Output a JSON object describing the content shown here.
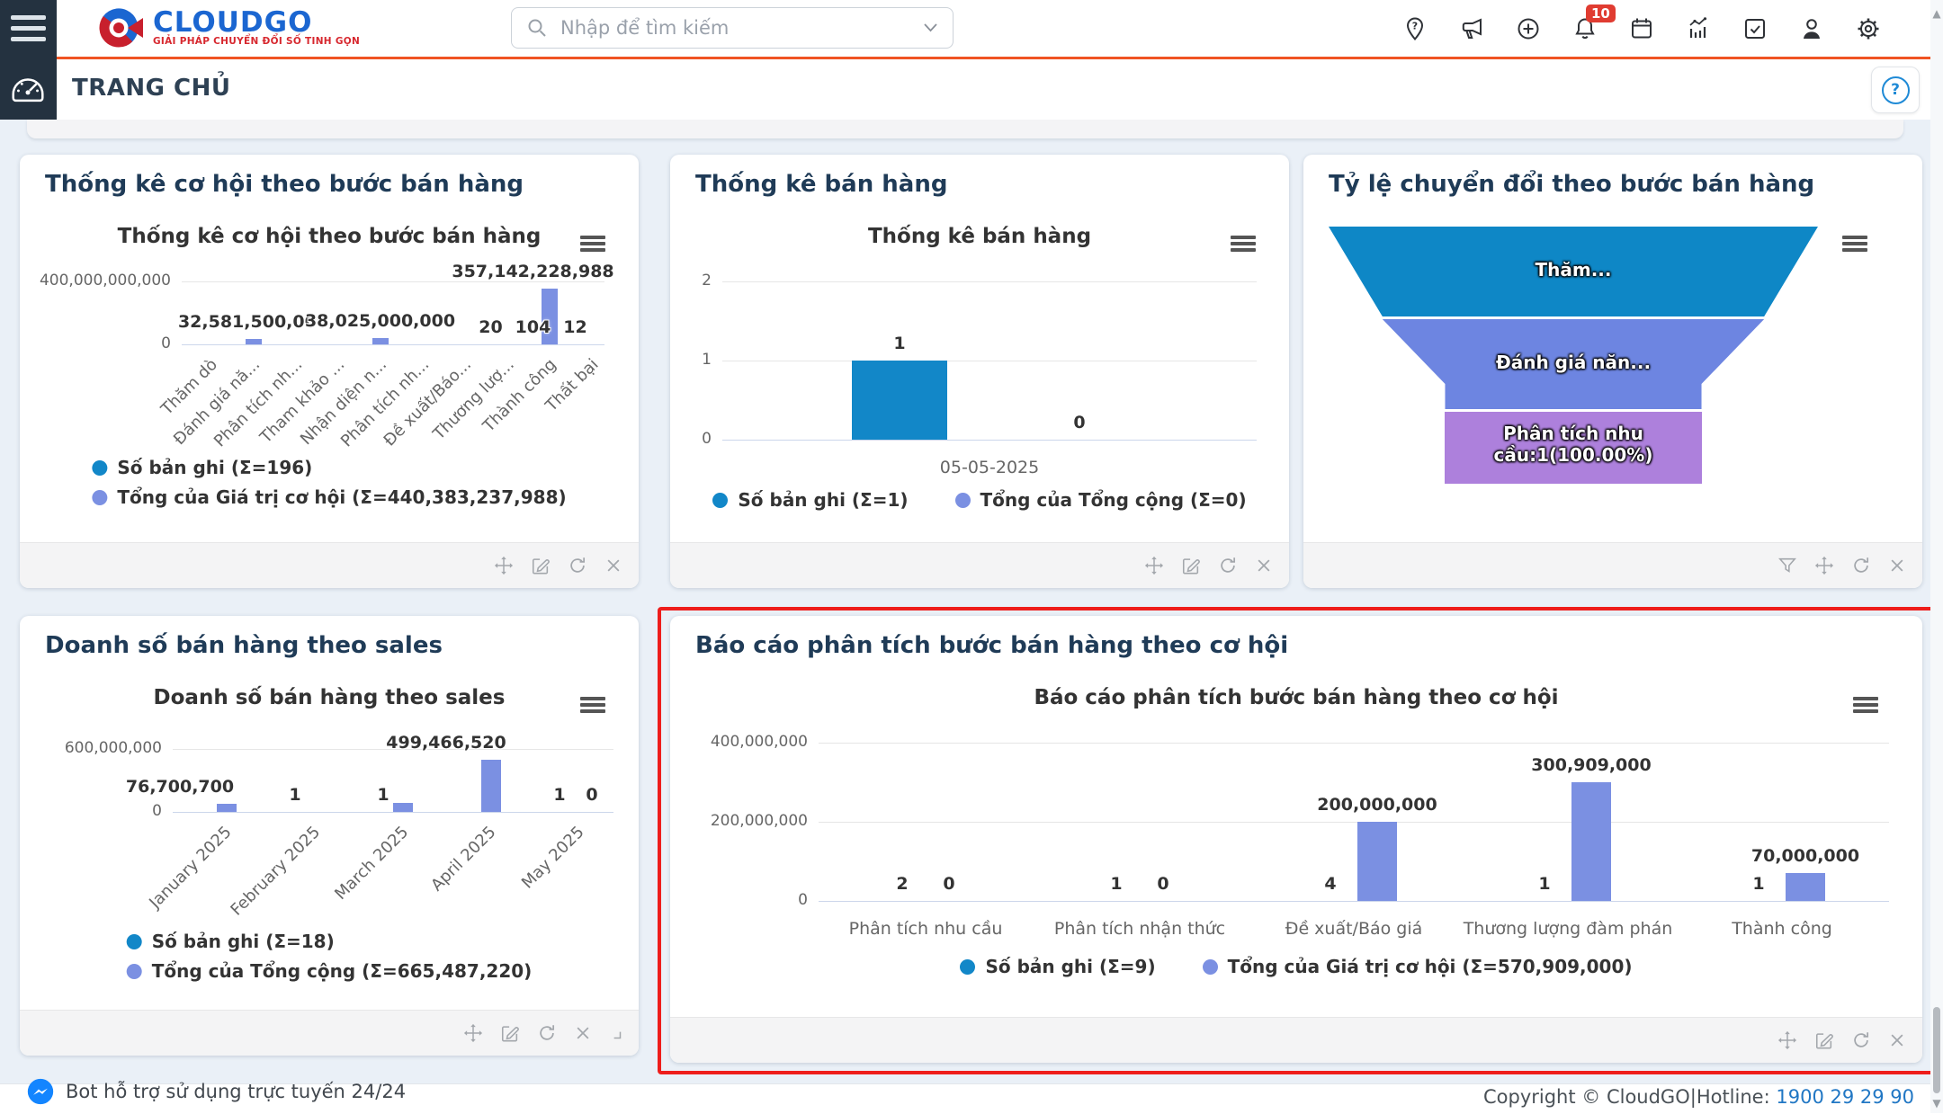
{
  "header": {
    "brand": "CLOUDGO",
    "tagline": "GIẢI PHÁP CHUYỂN ĐỔI SỐ TINH GỌN",
    "search_placeholder": "Nhập để tìm kiếm",
    "notification_count": "10",
    "icons": [
      "location-pin",
      "megaphone",
      "plus-circle",
      "bell",
      "calendar",
      "analytics",
      "check-square",
      "user",
      "gear"
    ]
  },
  "breadcrumb": {
    "title": "TRANG CHỦ",
    "help": "?"
  },
  "statusbar": {
    "bot_text": "Bot hỗ trợ sử dụng trực tuyến 24/24",
    "copyright": "Copyright © CloudGO",
    "separator": "|",
    "hotline_label": "Hotline:",
    "hotline_number": "1900 29 29 90"
  },
  "colors": {
    "accent_orange": "#f05423",
    "sidebar_navy": "#243240",
    "title_navy": "#1f3b57",
    "series_blue": "#1287c8",
    "series_periwinkle": "#7b90e2",
    "highlight_red": "#ee1d1b"
  },
  "widgets": [
    {
      "id": "thong-ke-co-hoi-theo-buoc-ban-hang",
      "card_title": "Thống kê cơ hội theo bước bán hàng",
      "footer_icons": [
        "move",
        "edit",
        "refresh",
        "close"
      ],
      "chart_data": {
        "type": "bar",
        "title": "Thống kê cơ hội theo bước bán hàng",
        "categories": [
          "Thăm dò",
          "Đánh giá nă...",
          "Phân tích nh...",
          "Tham khảo ...",
          "Nhận diện n...",
          "Phân tích nh...",
          "Đề xuất/Báo...",
          "Thương lượ...",
          "Thành công",
          "Thất bại"
        ],
        "ylim": [
          0,
          400000000000
        ],
        "yticks": [
          {
            "value": 400000000000,
            "label": "400,000,000,000"
          },
          {
            "value": 0,
            "label": "0"
          }
        ],
        "series": [
          {
            "name": "Số bản ghi (Σ=196)",
            "color": "#1287c8"
          },
          {
            "name": "Tổng của Giá trị cơ hội (Σ=440,383,237,988)",
            "color": "#7b90e2"
          }
        ],
        "legend_layout": "vertical",
        "points": [
          {
            "cat": 1,
            "series": 1,
            "value": 32581500000,
            "label": "32,581,500,000"
          },
          {
            "cat": 4,
            "series": 1,
            "value": 38025000000,
            "label": "38,025,000,000"
          },
          {
            "cat": 8,
            "series": 1,
            "value": 357142228988,
            "label": "357,142,228,988",
            "label_dx": -18
          },
          {
            "cat": 7,
            "series": 0,
            "value": 20,
            "label": "20"
          },
          {
            "cat": 8,
            "series": 0,
            "value": 104,
            "label": "104"
          },
          {
            "cat": 9,
            "series": 0,
            "value": 12,
            "label": "12"
          }
        ]
      }
    },
    {
      "id": "thong-ke-ban-hang",
      "card_title": "Thống kê bán hàng",
      "footer_icons": [
        "move",
        "edit",
        "refresh",
        "close"
      ],
      "chart_data": {
        "type": "bar",
        "title": "Thống kê bán hàng",
        "categories": [
          "05-05-2025"
        ],
        "ylim": [
          0,
          2
        ],
        "yticks": [
          {
            "value": 2,
            "label": "2"
          },
          {
            "value": 1,
            "label": "1"
          },
          {
            "value": 0,
            "label": "0"
          }
        ],
        "series": [
          {
            "name": "Số bản ghi (Σ=1)",
            "color": "#1287c8"
          },
          {
            "name": "Tổng của Tổng cộng (Σ=0)",
            "color": "#7b90e2"
          }
        ],
        "legend_layout": "horizontal",
        "points": [
          {
            "cat": 0,
            "series": 0,
            "value": 1,
            "label": "1"
          },
          {
            "cat": 0,
            "series": 1,
            "value": 0,
            "label": "0"
          }
        ]
      }
    },
    {
      "id": "ty-le-chuyen-doi-theo-buoc-ban-hang",
      "card_title": "Tỷ lệ chuyển đổi theo bước bán hàng",
      "footer_icons": [
        "filter",
        "move",
        "refresh",
        "close"
      ],
      "chart_data": {
        "type": "funnel",
        "segments": [
          {
            "label": "Thăm...",
            "color": "#0e87c6"
          },
          {
            "label": "Đánh giá năn...",
            "color": "#6d85e1"
          },
          {
            "label": "Phân tích nhu cầu:1(100.00%)",
            "color": "#ad80dc"
          }
        ]
      }
    },
    {
      "id": "doanh-so-ban-hang-theo-sales",
      "card_title": "Doanh số bán hàng theo sales",
      "footer_icons": [
        "move",
        "edit",
        "refresh",
        "close",
        "resize"
      ],
      "chart_data": {
        "type": "bar",
        "title": "Doanh số bán hàng theo sales",
        "categories": [
          "January 2025",
          "February 2025",
          "March 2025",
          "April 2025",
          "May 2025"
        ],
        "ylim": [
          0,
          600000000
        ],
        "yticks": [
          {
            "value": 600000000,
            "label": "600,000,000"
          },
          {
            "value": 0,
            "label": "0"
          }
        ],
        "series": [
          {
            "name": "Số bản ghi (Σ=18)",
            "color": "#1287c8"
          },
          {
            "name": "Tổng của Tổng cộng (Σ=665,487,220)",
            "color": "#7b90e2"
          }
        ],
        "legend_layout": "vertical",
        "points": [
          {
            "cat": 0,
            "series": 1,
            "value": 76700700,
            "label": "76,700,700",
            "label_dx": -52
          },
          {
            "cat": 1,
            "series": 0,
            "value": 1,
            "label": "1"
          },
          {
            "cat": 2,
            "series": 0,
            "value": 1,
            "label": "1"
          },
          {
            "cat": 2,
            "series": 1,
            "value": 89320000,
            "label": null
          },
          {
            "cat": 3,
            "series": 1,
            "value": 499466520,
            "label": "499,466,520",
            "label_dx": -50
          },
          {
            "cat": 4,
            "series": 0,
            "value": 1,
            "label": "1"
          },
          {
            "cat": 4,
            "series": 1,
            "value": 0,
            "label": "0",
            "label_dx": 14
          }
        ]
      }
    },
    {
      "id": "bao-cao-phan-tich-buoc-ban-hang-theo-co-hoi",
      "card_title": "Báo cáo phân tích bước bán hàng theo cơ hội",
      "highlighted": true,
      "footer_icons": [
        "move",
        "edit",
        "refresh",
        "close"
      ],
      "chart_data": {
        "type": "bar",
        "title": "Báo cáo phân tích bước bán hàng theo cơ hội",
        "categories": [
          "Phân tích nhu cầu",
          "Phân tích nhận thức",
          "Đề xuất/Báo giá",
          "Thương lượng đàm phán",
          "Thành công"
        ],
        "ylim": [
          0,
          400000000
        ],
        "yticks": [
          {
            "value": 400000000,
            "label": "400,000,000"
          },
          {
            "value": 200000000,
            "label": "200,000,000"
          },
          {
            "value": 0,
            "label": "0"
          }
        ],
        "series": [
          {
            "name": "Số bản ghi (Σ=9)",
            "color": "#1287c8"
          },
          {
            "name": "Tổng của Giá trị cơ hội (Σ=570,909,000)",
            "color": "#7b90e2"
          }
        ],
        "legend_layout": "horizontal",
        "points": [
          {
            "cat": 0,
            "series": 0,
            "value": 2,
            "label": "2"
          },
          {
            "cat": 0,
            "series": 1,
            "value": 0,
            "label": "0"
          },
          {
            "cat": 1,
            "series": 0,
            "value": 1,
            "label": "1"
          },
          {
            "cat": 1,
            "series": 1,
            "value": 0,
            "label": "0"
          },
          {
            "cat": 2,
            "series": 0,
            "value": 4,
            "label": "4"
          },
          {
            "cat": 2,
            "series": 1,
            "value": 200000000,
            "label": "200,000,000"
          },
          {
            "cat": 3,
            "series": 0,
            "value": 1,
            "label": "1"
          },
          {
            "cat": 3,
            "series": 1,
            "value": 300909000,
            "label": "300,909,000"
          },
          {
            "cat": 4,
            "series": 0,
            "value": 1,
            "label": "1"
          },
          {
            "cat": 4,
            "series": 1,
            "value": 70000000,
            "label": "70,000,000"
          }
        ]
      }
    }
  ]
}
